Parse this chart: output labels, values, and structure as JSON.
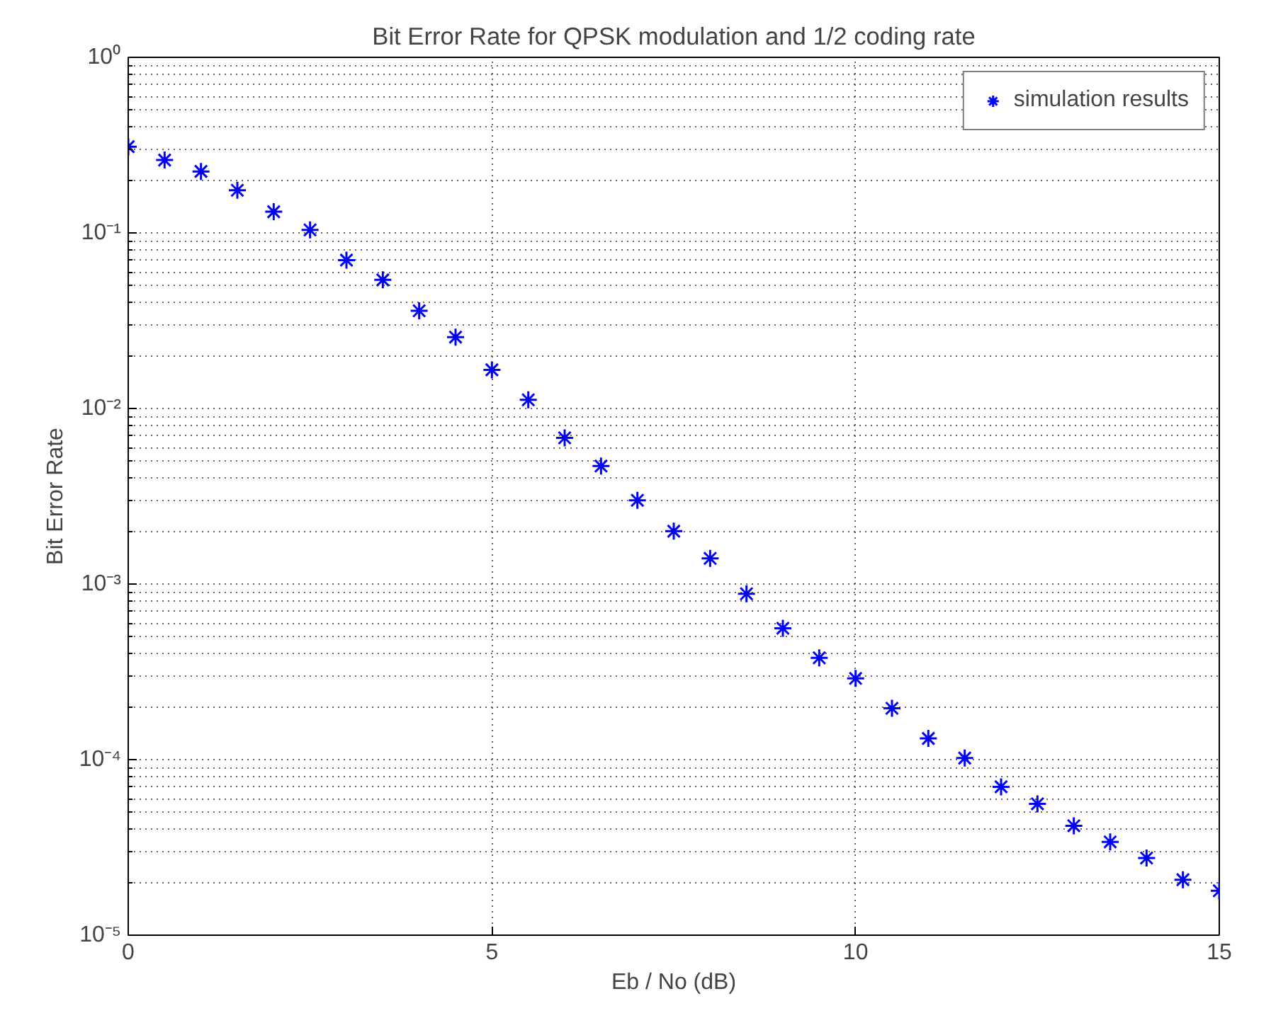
{
  "chart_data": {
    "type": "scatter",
    "title": "Bit Error Rate for QPSK modulation and 1/2 coding rate",
    "xlabel": "Eb / No (dB)",
    "ylabel": "Bit Error Rate",
    "x": [
      0,
      0.5,
      1,
      1.5,
      2,
      2.5,
      3,
      3.5,
      4,
      4.5,
      5,
      5.5,
      6,
      6.5,
      7,
      7.5,
      8,
      8.5,
      9,
      9.5,
      10,
      10.5,
      11,
      11.5,
      12,
      12.5,
      13,
      13.5,
      14,
      14.5,
      15
    ],
    "series": [
      {
        "name": "simulation results",
        "color": "#0000ff",
        "values": [
          0.31,
          0.26,
          0.224,
          0.175,
          0.132,
          0.104,
          0.07,
          0.054,
          0.036,
          0.0255,
          0.0166,
          0.0112,
          0.0068,
          0.0047,
          0.003,
          0.002,
          0.0014,
          0.00088,
          0.00056,
          0.00038,
          0.00029,
          0.000196,
          0.000132,
          0.000102,
          7e-05,
          5.6e-05,
          4.2e-05,
          3.4e-05,
          2.75e-05,
          2.07e-05,
          1.79e-05
        ]
      }
    ],
    "xlim": [
      0,
      15
    ],
    "xticks": [
      0,
      5,
      10,
      15
    ],
    "ylim": [
      1e-05,
      1
    ],
    "yticks": [
      {
        "value": 1e-05,
        "label": "10⁻⁵"
      },
      {
        "value": 0.0001,
        "label": "10⁻⁴"
      },
      {
        "value": 0.001,
        "label": "10⁻³"
      },
      {
        "value": 0.01,
        "label": "10⁻²"
      },
      {
        "value": 0.1,
        "label": "10⁻¹"
      },
      {
        "value": 1,
        "label": "10⁰"
      }
    ],
    "log": "y",
    "grid": true,
    "legend": "top right",
    "marker": "cross"
  }
}
